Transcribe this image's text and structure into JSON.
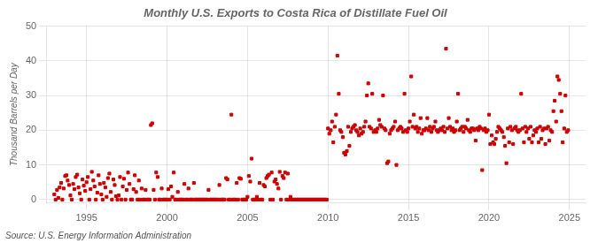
{
  "chart_data": {
    "type": "scatter",
    "title": "Monthly U.S. Exports to Costa Rica of Distillate Fuel Oil",
    "ylabel": "Thousand Barrels per Day",
    "annotations": [
      "Source: U.S. Energy Information Administration"
    ],
    "color": "#cc0000",
    "marker": "square",
    "grid": true,
    "xlim": [
      1992.5,
      2026.0
    ],
    "ylim": [
      -1,
      50
    ],
    "xticks": [
      1995,
      2000,
      2005,
      2010,
      2015,
      2020,
      2025
    ],
    "yticks": [
      0,
      10,
      20,
      30,
      40,
      50
    ],
    "x": [
      1993.0,
      1993.08,
      1993.17,
      1993.25,
      1993.33,
      1993.42,
      1993.5,
      1993.58,
      1993.67,
      1993.75,
      1993.83,
      1993.92,
      1994.0,
      1994.08,
      1994.17,
      1994.25,
      1994.33,
      1994.42,
      1994.5,
      1994.58,
      1994.67,
      1994.75,
      1994.83,
      1994.92,
      1995.0,
      1995.08,
      1995.17,
      1995.25,
      1995.33,
      1995.42,
      1995.5,
      1995.58,
      1995.67,
      1995.75,
      1995.83,
      1995.92,
      1996.0,
      1996.08,
      1996.17,
      1996.25,
      1996.33,
      1996.42,
      1996.5,
      1996.58,
      1996.67,
      1996.75,
      1996.83,
      1996.92,
      1997.0,
      1997.08,
      1997.17,
      1997.25,
      1997.33,
      1997.42,
      1997.5,
      1997.58,
      1997.67,
      1997.75,
      1997.83,
      1997.92,
      1998.0,
      1998.08,
      1998.17,
      1998.25,
      1998.33,
      1998.42,
      1998.5,
      1998.58,
      1998.67,
      1998.75,
      1998.83,
      1998.92,
      1999.0,
      1999.08,
      1999.17,
      1999.25,
      1999.33,
      1999.42,
      1999.5,
      1999.58,
      1999.67,
      1999.75,
      1999.83,
      1999.92,
      2000.0,
      2000.08,
      2000.17,
      2000.25,
      2000.33,
      2000.42,
      2000.5,
      2000.58,
      2000.67,
      2000.75,
      2000.83,
      2000.92,
      2001.0,
      2001.08,
      2001.17,
      2001.25,
      2001.33,
      2001.42,
      2001.5,
      2001.58,
      2001.67,
      2001.75,
      2001.83,
      2001.92,
      2002.0,
      2002.08,
      2002.17,
      2002.25,
      2002.33,
      2002.42,
      2002.5,
      2002.58,
      2002.67,
      2002.75,
      2002.83,
      2002.92,
      2003.0,
      2003.08,
      2003.17,
      2003.25,
      2003.33,
      2003.42,
      2003.5,
      2003.58,
      2003.67,
      2003.75,
      2003.83,
      2003.92,
      2004.0,
      2004.08,
      2004.17,
      2004.25,
      2004.33,
      2004.42,
      2004.5,
      2004.58,
      2004.67,
      2004.75,
      2004.83,
      2004.92,
      2005.0,
      2005.08,
      2005.17,
      2005.25,
      2005.33,
      2005.42,
      2005.5,
      2005.58,
      2005.67,
      2005.75,
      2005.83,
      2005.92,
      2006.0,
      2006.08,
      2006.17,
      2006.25,
      2006.33,
      2006.42,
      2006.5,
      2006.58,
      2006.67,
      2006.75,
      2006.83,
      2006.92,
      2007.0,
      2007.08,
      2007.17,
      2007.25,
      2007.33,
      2007.42,
      2007.5,
      2007.58,
      2007.67,
      2007.75,
      2007.83,
      2007.92,
      2008.0,
      2008.08,
      2008.17,
      2008.25,
      2008.33,
      2008.42,
      2008.5,
      2008.58,
      2008.67,
      2008.75,
      2008.83,
      2008.92,
      2009.0,
      2009.08,
      2009.17,
      2009.25,
      2009.33,
      2009.42,
      2009.5,
      2009.58,
      2009.67,
      2009.75,
      2009.83,
      2009.92,
      2010.0,
      2010.08,
      2010.17,
      2010.25,
      2010.33,
      2010.42,
      2010.5,
      2010.58,
      2010.67,
      2010.75,
      2010.83,
      2010.92,
      2011.0,
      2011.08,
      2011.17,
      2011.25,
      2011.33,
      2011.42,
      2011.5,
      2011.58,
      2011.67,
      2011.75,
      2011.83,
      2011.92,
      2012.0,
      2012.08,
      2012.17,
      2012.25,
      2012.33,
      2012.42,
      2012.5,
      2012.58,
      2012.67,
      2012.75,
      2012.83,
      2012.92,
      2013.0,
      2013.08,
      2013.17,
      2013.25,
      2013.33,
      2013.42,
      2013.5,
      2013.58,
      2013.67,
      2013.75,
      2013.83,
      2013.92,
      2014.0,
      2014.08,
      2014.17,
      2014.25,
      2014.33,
      2014.42,
      2014.5,
      2014.58,
      2014.67,
      2014.75,
      2014.83,
      2014.92,
      2015.0,
      2015.08,
      2015.17,
      2015.25,
      2015.33,
      2015.42,
      2015.5,
      2015.58,
      2015.67,
      2015.75,
      2015.83,
      2015.92,
      2016.0,
      2016.08,
      2016.17,
      2016.25,
      2016.33,
      2016.42,
      2016.5,
      2016.58,
      2016.67,
      2016.75,
      2016.83,
      2016.92,
      2017.0,
      2017.08,
      2017.17,
      2017.25,
      2017.33,
      2017.42,
      2017.5,
      2017.58,
      2017.67,
      2017.75,
      2017.83,
      2017.92,
      2018.0,
      2018.08,
      2018.17,
      2018.25,
      2018.33,
      2018.42,
      2018.5,
      2018.58,
      2018.67,
      2018.75,
      2018.83,
      2018.92,
      2019.0,
      2019.08,
      2019.17,
      2019.25,
      2019.33,
      2019.42,
      2019.5,
      2019.58,
      2019.67,
      2019.75,
      2019.83,
      2019.92,
      2020.0,
      2020.08,
      2020.17,
      2020.25,
      2020.33,
      2020.42,
      2020.5,
      2020.58,
      2020.67,
      2020.75,
      2020.83,
      2020.92,
      2021.0,
      2021.08,
      2021.17,
      2021.25,
      2021.33,
      2021.42,
      2021.5,
      2021.58,
      2021.67,
      2021.75,
      2021.83,
      2021.92,
      2022.0,
      2022.08,
      2022.17,
      2022.25,
      2022.33,
      2022.42,
      2022.5,
      2022.58,
      2022.67,
      2022.75,
      2022.83,
      2022.92,
      2023.0,
      2023.08,
      2023.17,
      2023.25,
      2023.33,
      2023.42,
      2023.5,
      2023.58,
      2023.67,
      2023.75,
      2023.83,
      2023.92,
      2024.0,
      2024.08,
      2024.17,
      2024.25,
      2024.33,
      2024.42,
      2024.5,
      2024.58,
      2024.67,
      2024.75,
      2024.83,
      2024.92
    ],
    "values": [
      1.5,
      0.0,
      2.8,
      0.5,
      3.5,
      4.8,
      0.0,
      3.2,
      6.8,
      7.0,
      5.5,
      4.2,
      1.2,
      0.0,
      4.5,
      3.0,
      6.5,
      7.2,
      3.5,
      1.8,
      0.0,
      5.8,
      4.0,
      2.5,
      5.0,
      6.5,
      0.0,
      3.0,
      8.0,
      5.5,
      3.8,
      0.0,
      2.0,
      7.0,
      4.5,
      1.5,
      0.0,
      4.8,
      3.5,
      0.8,
      6.2,
      7.5,
      2.2,
      0.0,
      5.8,
      4.2,
      1.0,
      0.0,
      1.2,
      6.5,
      0.0,
      3.8,
      6.0,
      0.0,
      2.8,
      7.8,
      4.5,
      0.0,
      0.0,
      3.0,
      7.0,
      2.2,
      0.0,
      5.5,
      0.0,
      3.2,
      0.0,
      0.0,
      2.8,
      0.0,
      0.0,
      0.0,
      21.5,
      22.0,
      2.8,
      0.0,
      7.8,
      6.5,
      0.0,
      0.0,
      3.2,
      0.0,
      0.0,
      0.0,
      0.0,
      3.0,
      0.0,
      3.8,
      0.8,
      7.8,
      0.0,
      0.0,
      2.2,
      0.0,
      0.0,
      0.0,
      0.0,
      4.5,
      0.0,
      0.0,
      3.2,
      0.0,
      0.0,
      0.0,
      4.8,
      0.0,
      0.0,
      0.0,
      0.0,
      0.0,
      0.0,
      0.0,
      0.0,
      0.0,
      0.0,
      2.8,
      0.0,
      0.0,
      0.0,
      0.0,
      0.0,
      0.0,
      0.0,
      4.2,
      0.0,
      0.0,
      0.0,
      0.0,
      6.2,
      5.8,
      0.0,
      0.0,
      24.5,
      0.0,
      0.0,
      0.0,
      4.8,
      0.0,
      6.2,
      6.0,
      0.0,
      0.0,
      0.0,
      0.0,
      0.8,
      6.8,
      5.2,
      11.8,
      0.0,
      0.0,
      0.0,
      0.8,
      0.0,
      4.8,
      0.0,
      0.0,
      4.2,
      3.8,
      6.2,
      6.8,
      7.2,
      0.0,
      7.8,
      0.0,
      5.2,
      5.8,
      4.5,
      3.2,
      8.0,
      0.0,
      6.8,
      6.2,
      7.8,
      0.0,
      7.5,
      0.0,
      0.8,
      0.0,
      0.0,
      0.0,
      0.0,
      0.0,
      0.0,
      0.0,
      0.0,
      0.0,
      0.0,
      0.0,
      0.0,
      0.0,
      0.0,
      0.0,
      0.0,
      0.0,
      0.0,
      0.0,
      0.0,
      0.0,
      0.0,
      0.0,
      0.0,
      0.0,
      0.0,
      0.0,
      20.5,
      19.0,
      20.0,
      22.5,
      16.5,
      21.0,
      24.5,
      41.5,
      30.5,
      20.0,
      19.5,
      18.0,
      13.5,
      13.0,
      14.0,
      21.0,
      15.5,
      19.5,
      20.5,
      21.0,
      21.5,
      20.0,
      19.5,
      18.5,
      20.5,
      19.0,
      19.5,
      21.0,
      22.5,
      30.0,
      33.5,
      21.0,
      20.5,
      30.5,
      19.5,
      20.0,
      19.5,
      20.5,
      23.0,
      21.5,
      21.0,
      30.0,
      20.5,
      20.0,
      10.5,
      11.0,
      19.0,
      20.0,
      20.5,
      21.0,
      22.5,
      10.0,
      20.0,
      20.5,
      21.0,
      20.5,
      19.5,
      30.5,
      20.0,
      19.5,
      20.5,
      22.5,
      35.5,
      21.0,
      24.5,
      20.5,
      21.0,
      19.5,
      20.5,
      23.5,
      19.0,
      20.0,
      20.0,
      20.5,
      23.5,
      20.0,
      21.0,
      19.5,
      20.5,
      21.0,
      22.5,
      20.0,
      19.5,
      20.0,
      20.5,
      20.0,
      21.0,
      19.5,
      43.5,
      20.5,
      23.5,
      21.0,
      20.0,
      20.5,
      19.5,
      20.0,
      22.5,
      30.5,
      20.0,
      20.5,
      21.0,
      19.5,
      21.0,
      20.5,
      23.0,
      20.0,
      19.5,
      20.5,
      20.5,
      20.0,
      17.0,
      20.5,
      20.0,
      21.0,
      20.5,
      8.5,
      20.0,
      20.5,
      19.5,
      20.0,
      24.5,
      16.0,
      18.5,
      16.5,
      16.0,
      17.5,
      19.5,
      21.0,
      20.5,
      20.0,
      19.5,
      18.0,
      15.5,
      10.5,
      20.5,
      16.5,
      21.0,
      20.0,
      16.0,
      20.5,
      21.0,
      20.0,
      19.5,
      20.0,
      30.5,
      20.5,
      16.5,
      21.0,
      19.5,
      20.5,
      17.5,
      21.0,
      16.5,
      18.5,
      20.0,
      19.5,
      20.5,
      16.5,
      21.0,
      17.5,
      20.0,
      20.5,
      16.0,
      20.5,
      21.0,
      17.0,
      20.0,
      19.5,
      25.5,
      28.5,
      22.5,
      35.5,
      34.5,
      30.5,
      25.5,
      16.5,
      20.5,
      30.0,
      19.5,
      20.0
    ]
  }
}
